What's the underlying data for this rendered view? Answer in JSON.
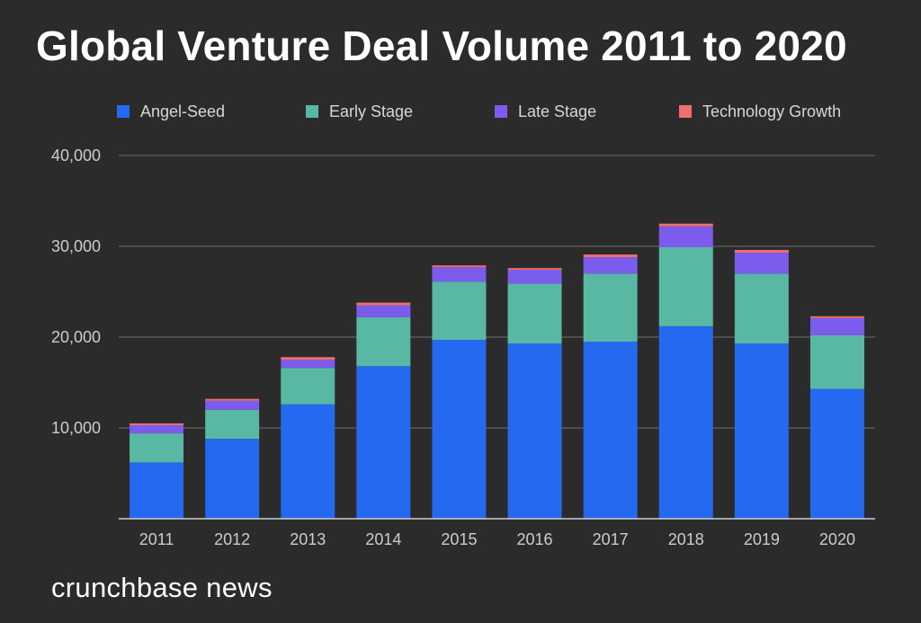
{
  "title": "Global Venture Deal Volume 2011 to 2020",
  "brand": "crunchbase news",
  "colors": {
    "background": "#2b2b2b",
    "gridline": "#6f6f6f",
    "axis": "#cfcfcf",
    "tick_text": "#cccccc"
  },
  "chart_data": {
    "type": "bar",
    "stacked": true,
    "title": "Global Venture Deal Volume 2011 to 2020",
    "categories": [
      "2011",
      "2012",
      "2013",
      "2014",
      "2015",
      "2016",
      "2017",
      "2018",
      "2019",
      "2020"
    ],
    "series": [
      {
        "name": "Angel-Seed",
        "color": "#2469f0",
        "values": [
          6200,
          8800,
          12600,
          16800,
          19700,
          19300,
          19500,
          21200,
          19300,
          14300
        ]
      },
      {
        "name": "Early Stage",
        "color": "#58b8a3",
        "values": [
          3200,
          3200,
          4000,
          5400,
          6400,
          6600,
          7500,
          8700,
          7700,
          5900
        ]
      },
      {
        "name": "Late Stage",
        "color": "#7b5cec",
        "values": [
          900,
          1000,
          900,
          1300,
          1600,
          1500,
          1800,
          2300,
          2300,
          1900
        ]
      },
      {
        "name": "Technology Growth",
        "color": "#ef6f6f",
        "values": [
          200,
          200,
          300,
          300,
          200,
          200,
          300,
          300,
          300,
          200
        ]
      }
    ],
    "y_ticks": [
      {
        "value": 10000,
        "label": "10,000"
      },
      {
        "value": 20000,
        "label": "20,000"
      },
      {
        "value": 30000,
        "label": "30,000"
      },
      {
        "value": 40000,
        "label": "40,000"
      }
    ],
    "ylim": [
      0,
      40000
    ],
    "grid": true,
    "legend_position": "top"
  }
}
